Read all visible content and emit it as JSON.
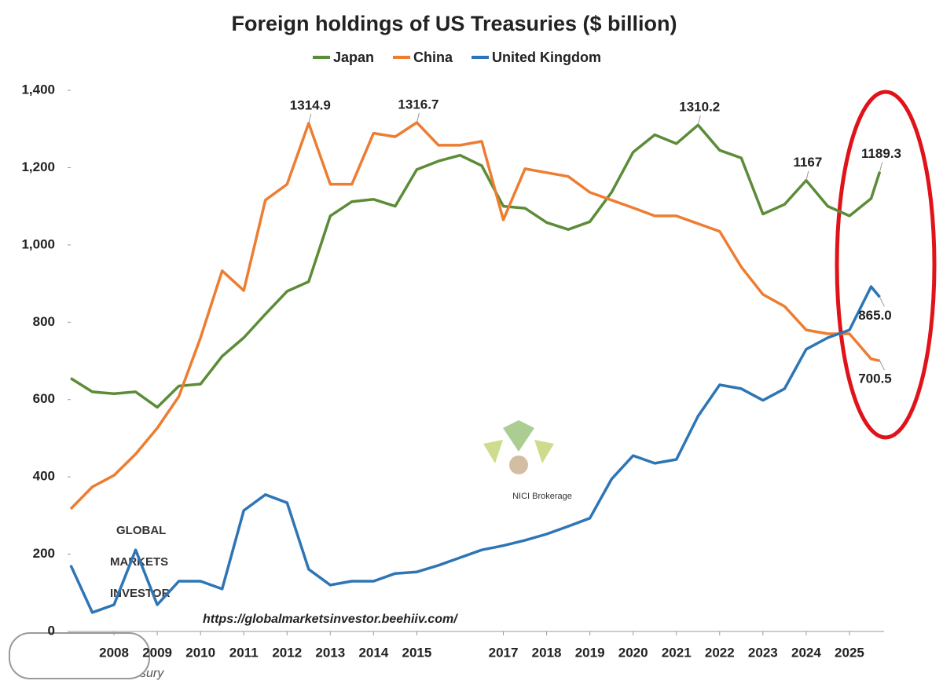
{
  "chart_data": {
    "type": "line",
    "title": "Foreign holdings of US Treasuries ($ billion)",
    "x": [
      2007.0,
      2007.5,
      2008.0,
      2008.5,
      2009.0,
      2009.5,
      2010.0,
      2010.5,
      2011.0,
      2011.5,
      2012.0,
      2012.5,
      2013.0,
      2013.5,
      2014.0,
      2014.5,
      2015.0,
      2015.5,
      2016.0,
      2016.5,
      2017.0,
      2017.5,
      2018.0,
      2018.5,
      2019.0,
      2019.5,
      2020.0,
      2020.5,
      2021.0,
      2021.5,
      2022.0,
      2022.5,
      2023.0,
      2023.5,
      2024.0,
      2024.5,
      2025.0,
      2025.5,
      2025.7
    ],
    "series": [
      {
        "name": "Japan",
        "color": "#5b8c37",
        "values": [
          655,
          620,
          615,
          620,
          580,
          635,
          640,
          712,
          760,
          821,
          880,
          905,
          1075,
          1112,
          1118,
          1100,
          1195,
          1217,
          1232,
          1205,
          1100,
          1095,
          1058,
          1040,
          1060,
          1136,
          1240,
          1285,
          1262,
          1310.2,
          1245,
          1225,
          1080,
          1105,
          1167,
          1100,
          1075,
          1120,
          1189.3
        ],
        "value_labels": [
          null,
          null,
          null,
          null,
          null,
          null,
          null,
          null,
          null,
          null,
          null,
          null,
          null,
          null,
          null,
          null,
          null,
          null,
          null,
          null,
          null,
          null,
          null,
          null,
          null,
          null,
          null,
          null,
          null,
          "1310.2",
          null,
          null,
          null,
          null,
          "1167",
          null,
          null,
          null,
          "1189.3"
        ]
      },
      {
        "name": "China",
        "color": "#ed7d31",
        "values": [
          317,
          374,
          404,
          459,
          526,
          608,
          760,
          933,
          882,
          1116,
          1157,
          1314.9,
          1157,
          1157,
          1289,
          1280,
          1316.7,
          1258,
          1258,
          1268,
          1065,
          1197,
          1187,
          1177,
          1136,
          1116,
          1096,
          1075,
          1075,
          1055,
          1035,
          943,
          872,
          841,
          780,
          770,
          770,
          705,
          700.5
        ],
        "value_labels": [
          null,
          null,
          null,
          null,
          null,
          null,
          null,
          null,
          null,
          null,
          null,
          "1314.9",
          null,
          null,
          null,
          null,
          "1316.7",
          null,
          null,
          null,
          null,
          null,
          null,
          null,
          null,
          null,
          null,
          null,
          null,
          null,
          null,
          null,
          null,
          null,
          null,
          null,
          null,
          null,
          "700.5"
        ]
      },
      {
        "name": "United Kingdom",
        "color": "#2e75b6",
        "values": [
          171,
          49,
          69,
          211,
          69,
          130,
          130,
          110,
          313,
          354,
          333,
          161,
          120,
          130,
          130,
          150,
          154,
          171,
          191,
          211,
          222,
          236,
          252,
          272,
          293,
          394,
          455,
          435,
          445,
          557,
          638,
          628,
          598,
          628,
          730,
          760,
          780,
          892,
          865
        ],
        "value_labels": [
          null,
          null,
          null,
          null,
          null,
          null,
          null,
          null,
          null,
          null,
          null,
          null,
          null,
          null,
          null,
          null,
          null,
          null,
          null,
          null,
          null,
          null,
          null,
          null,
          null,
          null,
          null,
          null,
          null,
          null,
          null,
          null,
          null,
          null,
          null,
          null,
          null,
          null,
          "865.0"
        ]
      }
    ],
    "xlim": [
      2007,
      2025.8
    ],
    "xticks": [
      2008,
      2009,
      2010,
      2011,
      2012,
      2013,
      2014,
      2015,
      2017,
      2018,
      2019,
      2020,
      2021,
      2022,
      2023,
      2024,
      2025
    ],
    "ylim": [
      0,
      1400
    ],
    "yticks": [
      0,
      {
        "value": 200,
        "label": "200"
      },
      {
        "value": 400,
        "label": "400"
      },
      {
        "value": 600,
        "label": "600"
      },
      {
        "value": 800,
        "label": "800"
      },
      {
        "value": 1000,
        "label": "1,000"
      },
      {
        "value": 1200,
        "label": "1,200"
      },
      {
        "value": 1400,
        "label": "1,400"
      }
    ],
    "grid": false,
    "legend": "top",
    "source": "Source: US Treasury",
    "url": "https://globalmarketsinvestor.beehiiv.com/",
    "watermark": [
      "GLOBAL",
      "MARKETS",
      "INVESTOR",
      "NICI Brokerage"
    ]
  }
}
